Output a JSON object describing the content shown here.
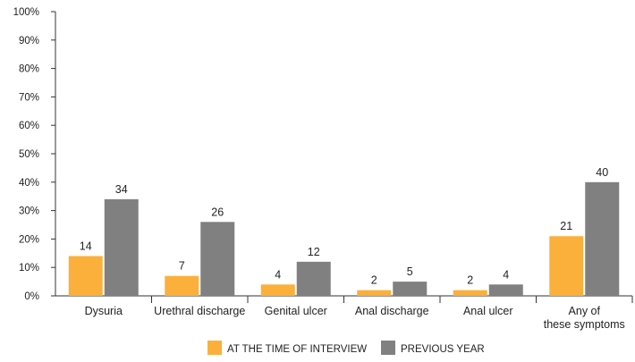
{
  "chart_data": {
    "type": "bar",
    "categories": [
      "Dysuria",
      "Urethral discharge",
      "Genital ulcer",
      "Anal discharge",
      "Anal ulcer",
      "Any of these symptoms"
    ],
    "series": [
      {
        "name": "AT THE TIME OF INTERVIEW",
        "values": [
          14,
          7,
          4,
          2,
          2,
          21
        ],
        "color": "#FBB03B"
      },
      {
        "name": "PREVIOUS YEAR",
        "values": [
          34,
          26,
          12,
          5,
          4,
          40
        ],
        "color": "#808080"
      }
    ],
    "yticks": [
      "0%",
      "10%",
      "20%",
      "30%",
      "40%",
      "50%",
      "60%",
      "70%",
      "80%",
      "90%",
      "100%"
    ],
    "ylim": [
      0,
      100
    ],
    "title": "",
    "xlabel": "",
    "ylabel": "",
    "legend_position": "bottom",
    "grid": false
  }
}
